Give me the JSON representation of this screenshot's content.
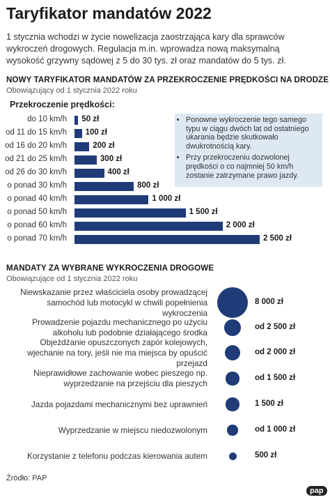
{
  "title": "Taryfikator mandatów 2022",
  "intro": "1 stycznia wchodzi w życie nowelizacja zaostrzająca kary dla sprawców wykroczeń drogowych. Regulacja m.in. wprowadza nową maksymalną wysokość grzywny sądowej z 5 do 30 tys. zł oraz mandatów do 5 tys. zł.",
  "source": "Źródło: PAP",
  "logo": "pap",
  "chart_data": [
    {
      "type": "bar",
      "title": "NOWY TARYFIKATOR MANDATÓW ZA PRZEKROCZENIE PRĘDKOŚCI NA DRODZE",
      "subtitle": "Obowiązujący od 1 stycznia 2022 roku",
      "axis_label": "Przekroczenie prędkości:",
      "categories": [
        "do 10 km/h",
        "od 11 do 15 km/h",
        "od 16 do 20 km/h",
        "od 21 do 25 km/h",
        "od 26 do 30 km/h",
        "o ponad 30 km/h",
        "o ponad 40 km/h",
        "o ponad 50 km/h",
        "o ponad 60 km/h",
        "o ponad 70 km/h"
      ],
      "values": [
        50,
        100,
        200,
        300,
        400,
        800,
        1000,
        1500,
        2000,
        2500
      ],
      "value_labels": [
        "50 zł",
        "100 zł",
        "200 zł",
        "300 zł",
        "400 zł",
        "800 zł",
        "1 000 zł",
        "1 500 zł",
        "2 000 zł",
        "2 500 zł"
      ],
      "color": "#1f3c78",
      "annotations": [
        "Ponowne wykroczenie tego samego typu w ciągu dwóch lat od ostatniego ukarania będzie skutkowało dwukrotnością kary.",
        "Przy przekroczeniu dozwolonej prędkości o co najmniej 50 km/h zostanie zatrzymane prawo jazdy."
      ]
    },
    {
      "type": "bubble",
      "title": "MANDATY ZA WYBRANE WYKROCZENIA DROGOWE",
      "subtitle": "Obowiązujące od 1 stycznia 2022 roku",
      "categories": [
        "Niewskazanie przez właściciela osoby prowadzącej samochód lub motocykl w chwili popełnienia wykroczenia",
        "Prowadzenie pojazdu mechanicznego po użyciu alkoholu lub podobnie działającego środka",
        "Objeżdżanie opuszczonych zapór kolejowych, wjechanie na tory, jeśli nie ma miejsca by opuścić przejazd",
        "Nieprawidłowe zachowanie wobec pieszego np. wyprzedzanie na przejściu dla pieszych",
        "Jazda pojazdami mechanicznymi bez uprawnień",
        "Wyprzedzanie w miejscu niedozwolonym",
        "Korzystanie z telefonu podczas kierowania autem"
      ],
      "values": [
        8000,
        2500,
        2000,
        1500,
        1500,
        1000,
        500
      ],
      "value_labels": [
        "8 000 zł",
        "od 2 500 zł",
        "od 2 000 zł",
        "od 1 500 zł",
        "1 500 zł",
        "od 1 000 zł",
        "500 zł"
      ],
      "color": "#1f3c78"
    }
  ]
}
